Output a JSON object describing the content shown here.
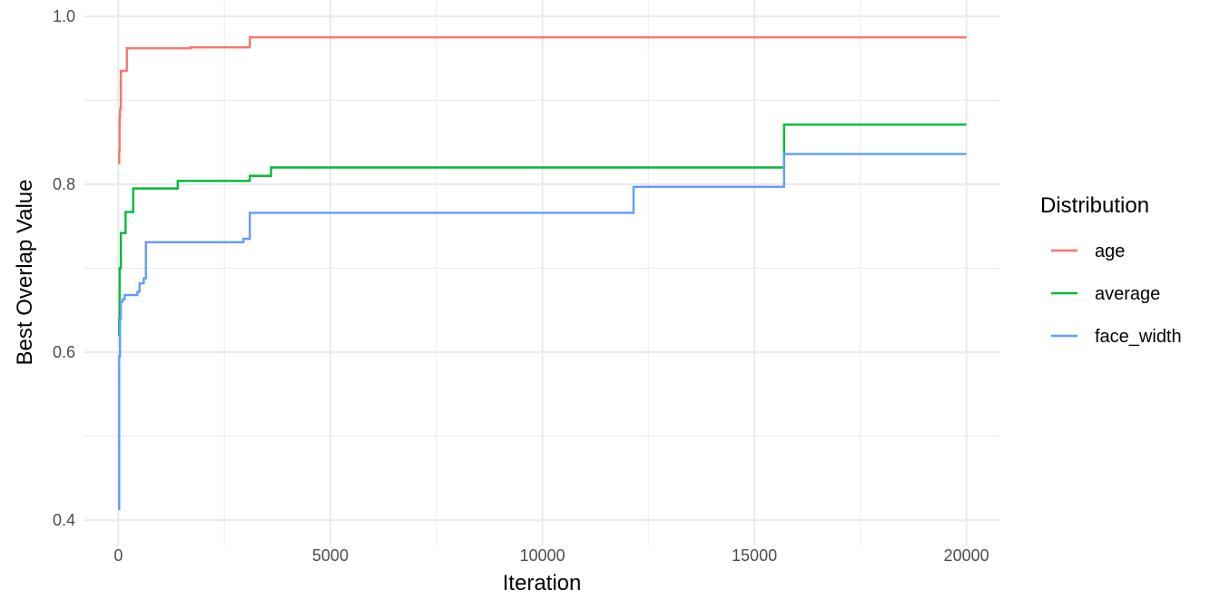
{
  "chart_data": {
    "type": "line",
    "step": true,
    "title": "",
    "xlabel": "Iteration",
    "ylabel": "Best Overlap Value",
    "xlim": [
      -800,
      20800
    ],
    "ylim": [
      0.4,
      1.0
    ],
    "xticks": [
      0,
      5000,
      10000,
      15000,
      20000
    ],
    "yticks": [
      0.4,
      0.6,
      0.8,
      1.0
    ],
    "xtick_labels": [
      "0",
      "5000",
      "10000",
      "15000",
      "20000"
    ],
    "ytick_labels": [
      "0.4",
      "0.6",
      "0.8",
      "1.0"
    ],
    "grid": true,
    "legend": {
      "title": "Distribution",
      "position": "right"
    },
    "series": [
      {
        "name": "age",
        "color": "#F8766D",
        "points": [
          [
            0,
            0.825
          ],
          [
            20,
            0.84
          ],
          [
            30,
            0.88
          ],
          [
            40,
            0.89
          ],
          [
            60,
            0.935
          ],
          [
            200,
            0.962
          ],
          [
            1700,
            0.963
          ],
          [
            3100,
            0.975
          ],
          [
            20000,
            0.975
          ]
        ]
      },
      {
        "name": "average",
        "color": "#00BA38",
        "points": [
          [
            0,
            0.62
          ],
          [
            20,
            0.64
          ],
          [
            30,
            0.7
          ],
          [
            60,
            0.742
          ],
          [
            150,
            0.742
          ],
          [
            170,
            0.767
          ],
          [
            350,
            0.795
          ],
          [
            1400,
            0.804
          ],
          [
            3100,
            0.81
          ],
          [
            3600,
            0.82
          ],
          [
            15700,
            0.871
          ],
          [
            20000,
            0.871
          ]
        ]
      },
      {
        "name": "face_width",
        "color": "#619CFF",
        "points": [
          [
            0,
            0.413
          ],
          [
            20,
            0.595
          ],
          [
            40,
            0.64
          ],
          [
            60,
            0.66
          ],
          [
            100,
            0.663
          ],
          [
            150,
            0.668
          ],
          [
            450,
            0.672
          ],
          [
            500,
            0.682
          ],
          [
            600,
            0.688
          ],
          [
            650,
            0.731
          ],
          [
            2950,
            0.735
          ],
          [
            3100,
            0.766
          ],
          [
            12150,
            0.797
          ],
          [
            15700,
            0.836
          ],
          [
            20000,
            0.836
          ]
        ]
      }
    ]
  }
}
